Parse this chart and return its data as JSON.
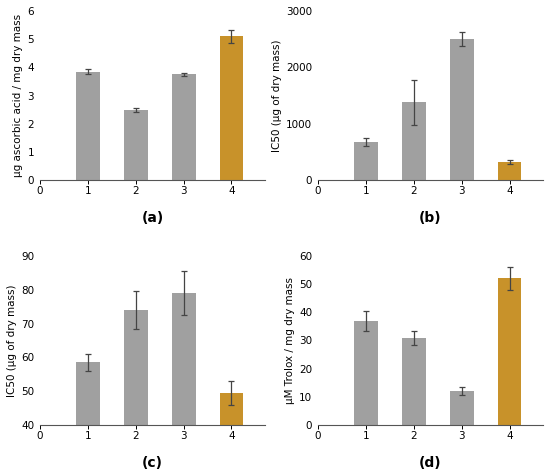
{
  "subplots": [
    {
      "label": "(a)",
      "categories": [
        1,
        2,
        3,
        4
      ],
      "values": [
        3.85,
        2.5,
        3.75,
        5.1
      ],
      "errors": [
        0.08,
        0.07,
        0.06,
        0.22
      ],
      "colors": [
        "#a0a0a0",
        "#a0a0a0",
        "#a0a0a0",
        "#c8922a"
      ],
      "ylabel": "μg ascorbic acid / mg dry mass",
      "ylim": [
        0,
        6
      ],
      "yticks": [
        0,
        1,
        2,
        3,
        4,
        5,
        6
      ],
      "xlim": [
        0,
        4.7
      ],
      "xticks": [
        0,
        1,
        2,
        3,
        4
      ]
    },
    {
      "label": "(b)",
      "categories": [
        1,
        2,
        3,
        4
      ],
      "values": [
        680,
        1380,
        2500,
        320
      ],
      "errors": [
        70,
        400,
        120,
        40
      ],
      "colors": [
        "#a0a0a0",
        "#a0a0a0",
        "#a0a0a0",
        "#c8922a"
      ],
      "ylabel": "IC50 (μg of dry mass)",
      "ylim": [
        0,
        3000
      ],
      "yticks": [
        0,
        1000,
        2000,
        3000
      ],
      "xlim": [
        0,
        4.7
      ],
      "xticks": [
        0,
        1,
        2,
        3,
        4
      ]
    },
    {
      "label": "(c)",
      "categories": [
        1,
        2,
        3,
        4
      ],
      "values": [
        58.5,
        74.0,
        79.0,
        49.5
      ],
      "errors": [
        2.5,
        5.5,
        6.5,
        3.5
      ],
      "colors": [
        "#a0a0a0",
        "#a0a0a0",
        "#a0a0a0",
        "#c8922a"
      ],
      "ylabel": "IC50 (μg of dry mass)",
      "ylim": [
        40,
        90
      ],
      "yticks": [
        40,
        50,
        60,
        70,
        80,
        90
      ],
      "xlim": [
        0,
        4.7
      ],
      "xticks": [
        0,
        1,
        2,
        3,
        4
      ]
    },
    {
      "label": "(d)",
      "categories": [
        1,
        2,
        3,
        4
      ],
      "values": [
        37,
        31,
        12,
        52
      ],
      "errors": [
        3.5,
        2.5,
        1.5,
        4.0
      ],
      "colors": [
        "#a0a0a0",
        "#a0a0a0",
        "#a0a0a0",
        "#c8922a"
      ],
      "ylabel": "μM Trolox / mg dry mass",
      "ylim": [
        0,
        60
      ],
      "yticks": [
        0,
        10,
        20,
        30,
        40,
        50,
        60
      ],
      "xlim": [
        0,
        4.7
      ],
      "xticks": [
        0,
        1,
        2,
        3,
        4
      ]
    }
  ],
  "bar_width": 0.5,
  "background_color": "#ffffff",
  "tick_fontsize": 7.5,
  "ylabel_fontsize": 7.5,
  "subplot_label_fontsize": 10
}
